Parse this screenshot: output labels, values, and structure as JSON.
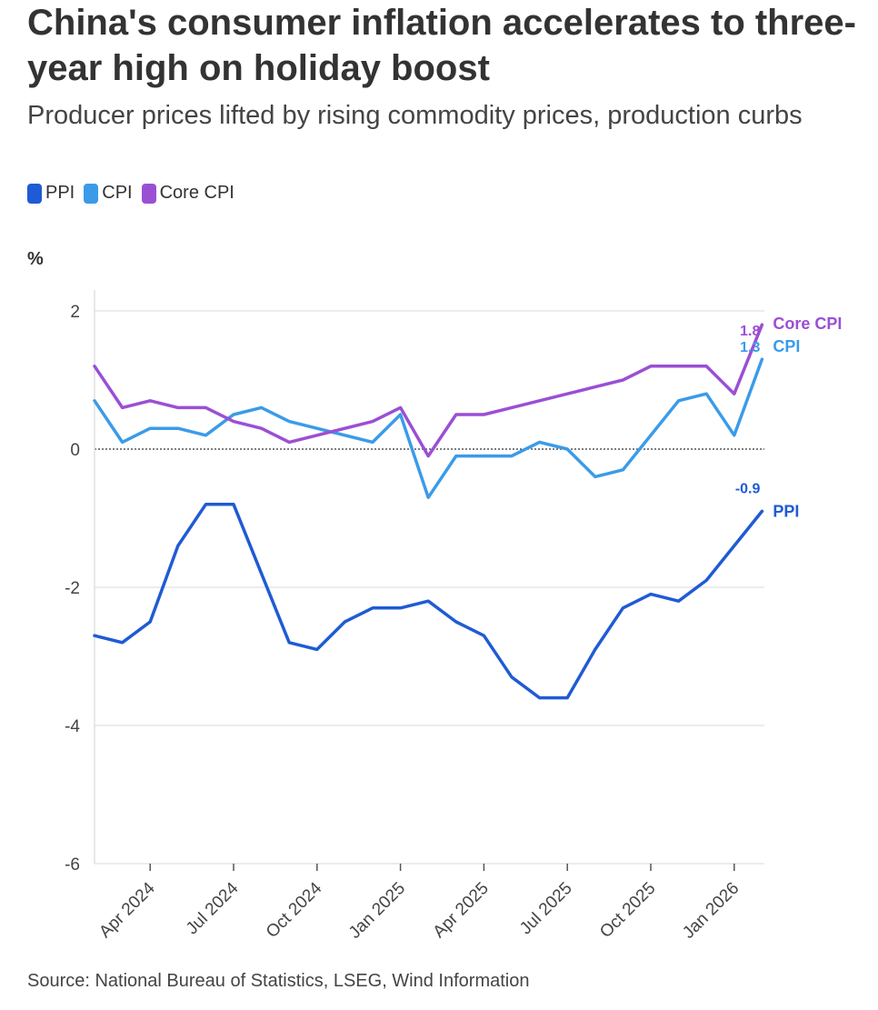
{
  "chart_data": {
    "type": "line",
    "title": "China's consumer inflation accelerates to three-year high on holiday boost",
    "subtitle": "Producer prices lifted by rising commodity prices, production curbs",
    "ylabel": "%",
    "xlabel": "",
    "ylim": [
      -6,
      2.3
    ],
    "yticks": [
      2,
      0,
      -2,
      -4,
      -6
    ],
    "x_tick_labels": [
      "Apr 2024",
      "Jul 2024",
      "Oct 2024",
      "Jan 2025",
      "Apr 2025",
      "Jul 2025",
      "Oct 2025",
      "Jan 2026"
    ],
    "x_tick_index": [
      2,
      5,
      8,
      11,
      14,
      17,
      20,
      23
    ],
    "months": [
      "Feb 2024",
      "Mar 2024",
      "Apr 2024",
      "May 2024",
      "Jun 2024",
      "Jul 2024",
      "Aug 2024",
      "Sep 2024",
      "Oct 2024",
      "Nov 2024",
      "Dec 2024",
      "Jan 2025",
      "Feb 2025",
      "Mar 2025",
      "Apr 2025",
      "May 2025",
      "Jun 2025",
      "Jul 2025",
      "Aug 2025",
      "Sep 2025",
      "Oct 2025",
      "Nov 2025",
      "Dec 2025",
      "Jan 2026",
      "Feb 2026"
    ],
    "series": [
      {
        "name": "PPI",
        "color": "#1f5bd4",
        "values": [
          -2.7,
          -2.8,
          -2.5,
          -1.4,
          -0.8,
          -0.8,
          -1.8,
          -2.8,
          -2.9,
          -2.5,
          -2.3,
          -2.3,
          -2.2,
          -2.5,
          -2.7,
          -3.3,
          -3.6,
          -3.6,
          -2.9,
          -2.3,
          -2.1,
          -2.2,
          -1.9,
          -1.4,
          -0.9
        ],
        "end_label": "PPI",
        "last_value_label": "-0.9"
      },
      {
        "name": "CPI",
        "color": "#3b9be8",
        "values": [
          0.7,
          0.1,
          0.3,
          0.3,
          0.2,
          0.5,
          0.6,
          0.4,
          0.3,
          0.2,
          0.1,
          0.5,
          -0.7,
          -0.1,
          -0.1,
          -0.1,
          0.1,
          0.0,
          -0.4,
          -0.3,
          0.2,
          0.7,
          0.8,
          0.2,
          1.3
        ],
        "end_label": "CPI",
        "last_value_label": "1.3"
      },
      {
        "name": "Core CPI",
        "color": "#9b4fd4",
        "values": [
          1.2,
          0.6,
          0.7,
          0.6,
          0.6,
          0.4,
          0.3,
          0.1,
          0.2,
          0.3,
          0.4,
          0.6,
          -0.1,
          0.5,
          0.5,
          0.6,
          0.7,
          0.8,
          0.9,
          1.0,
          1.2,
          1.2,
          1.2,
          0.8,
          1.8
        ],
        "end_label": "Core CPI",
        "last_value_label": "1.8"
      }
    ],
    "legend": [
      "PPI",
      "CPI",
      "Core CPI"
    ],
    "legend_position": "top-left",
    "grid": true
  },
  "source": "Source: National Bureau of Statistics, LSEG, Wind Information"
}
